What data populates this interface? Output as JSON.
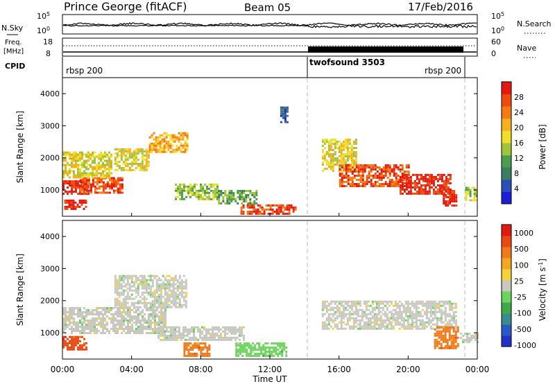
{
  "header": {
    "station": "Prince George (fitACF)",
    "beam": "Beam 05",
    "date": "17/Feb/2016"
  },
  "top_panel": {
    "left_label": "N.Sky",
    "right_label": "N.Search",
    "left_ticks": [
      "10^5",
      "10^0"
    ],
    "right_ticks": [
      "10^5",
      "10^0"
    ]
  },
  "freq_panel": {
    "left_label_1": "Freq.",
    "left_label_2": "[MHz]",
    "right_label": "Nave",
    "left_ticks": [
      "18",
      "8"
    ],
    "right_ticks": [
      "60",
      "0"
    ]
  },
  "cpid": {
    "label": "CPID",
    "segments": [
      {
        "name": "rbsp 200",
        "start_hour": 0.0
      },
      {
        "name": "twofsound 3503",
        "start_hour": 14.1
      },
      {
        "name": "rbsp 200",
        "start_hour": 22.9
      }
    ]
  },
  "power_colorbar": {
    "label": "Power [dB]",
    "ticks": [
      "4",
      "8",
      "12",
      "16",
      "20",
      "24",
      "28"
    ],
    "colors": [
      "#1d1dd8",
      "#2a4fb8",
      "#3b7f63",
      "#4b9d4f",
      "#9fc43b",
      "#f0df2a",
      "#f6b020",
      "#f57a12",
      "#ef4a10",
      "#e41a10"
    ]
  },
  "velocity_colorbar": {
    "label": "Velocity [m s^-1]",
    "ticks": [
      "1000",
      "500",
      "100",
      "25",
      "-25",
      "-100",
      "-500",
      "-1000"
    ],
    "colors": [
      "#2233cc",
      "#2a59c8",
      "#3a8c8c",
      "#40a848",
      "#6bd45a",
      "#c8c8c0",
      "#f4d23a",
      "#f5a623",
      "#f07a1a",
      "#e84a14",
      "#e01a10"
    ]
  },
  "axes": {
    "ylabel": "Slant Range [km]",
    "xlabel": "Time UT",
    "y_ticks": [
      "1000",
      "2000",
      "3000",
      "4000"
    ],
    "x_ticks": [
      "00:00",
      "04:00",
      "08:00",
      "12:00",
      "16:00",
      "20:00",
      "00:00"
    ]
  },
  "chart_data": {
    "type": "heatmap",
    "title": "Prince George (fitACF)",
    "xlabel": "Time UT",
    "ylabel": "Slant Range [km]",
    "xlim": [
      0,
      24
    ],
    "ylim": [
      180,
      4500
    ],
    "power_blobs": [
      {
        "t0": 0.0,
        "t1": 1.5,
        "r0": 900,
        "r1": 1300,
        "level": 9
      },
      {
        "t0": 0.1,
        "t1": 1.4,
        "r0": 400,
        "r1": 700,
        "level": 9
      },
      {
        "t0": 1.0,
        "t1": 3.5,
        "r0": 900,
        "r1": 1400,
        "level": 8
      },
      {
        "t0": 0.0,
        "t1": 2.8,
        "r0": 1400,
        "r1": 2200,
        "level": 5
      },
      {
        "t0": 3.0,
        "t1": 5.0,
        "r0": 1600,
        "r1": 2300,
        "level": 5
      },
      {
        "t0": 5.0,
        "t1": 7.2,
        "r0": 2200,
        "r1": 2800,
        "level": 6
      },
      {
        "t0": 6.5,
        "t1": 9.0,
        "r0": 700,
        "r1": 1200,
        "level": 4
      },
      {
        "t0": 9.0,
        "t1": 11.2,
        "r0": 600,
        "r1": 1000,
        "level": 3
      },
      {
        "t0": 10.3,
        "t1": 13.5,
        "r0": 250,
        "r1": 550,
        "level": 8
      },
      {
        "t0": 12.6,
        "t1": 13.0,
        "r0": 3100,
        "r1": 3600,
        "level": 1
      },
      {
        "t0": 15.0,
        "t1": 17.0,
        "r0": 1600,
        "r1": 2600,
        "level": 5
      },
      {
        "t0": 16.0,
        "t1": 20.0,
        "r0": 1100,
        "r1": 1800,
        "level": 8
      },
      {
        "t0": 19.5,
        "t1": 22.5,
        "r0": 900,
        "r1": 1500,
        "level": 9
      },
      {
        "t0": 22.0,
        "t1": 22.8,
        "r0": 500,
        "r1": 1000,
        "level": 9
      },
      {
        "t0": 23.3,
        "t1": 24.0,
        "r0": 700,
        "r1": 1100,
        "level": 4
      }
    ],
    "velocity_blobs": [
      {
        "t0": 0.0,
        "t1": 1.4,
        "r0": 500,
        "r1": 900,
        "cls": 9
      },
      {
        "t0": 0.0,
        "t1": 6.0,
        "r0": 1000,
        "r1": 1800,
        "cls": 5
      },
      {
        "t0": 3.0,
        "t1": 7.2,
        "r0": 1800,
        "r1": 2800,
        "cls": 5
      },
      {
        "t0": 5.5,
        "t1": 10.5,
        "r0": 800,
        "r1": 1200,
        "cls": 5
      },
      {
        "t0": 7.0,
        "t1": 8.5,
        "r0": 250,
        "r1": 700,
        "cls": 8
      },
      {
        "t0": 10.0,
        "t1": 13.0,
        "r0": 250,
        "r1": 700,
        "cls": 4
      },
      {
        "t0": 15.0,
        "t1": 22.8,
        "r0": 1100,
        "r1": 2000,
        "cls": 5
      },
      {
        "t0": 21.5,
        "t1": 22.9,
        "r0": 500,
        "r1": 1200,
        "cls": 8
      },
      {
        "t0": 23.0,
        "t1": 24.0,
        "r0": 700,
        "r1": 1000,
        "cls": 5
      }
    ]
  }
}
